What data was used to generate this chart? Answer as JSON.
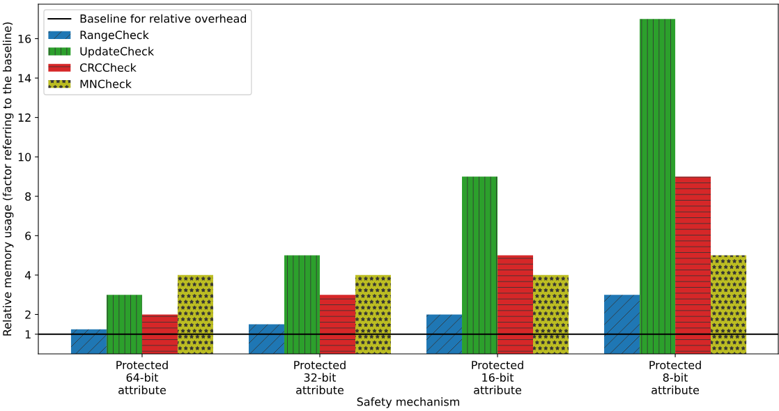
{
  "chart_data": {
    "type": "bar",
    "xlabel": "Safety mechanism",
    "ylabel": "Relative memory usage (factor referring to the baseline)",
    "categories": [
      "Protected\n64-bit\nattribute",
      "Protected\n32-bit\nattribute",
      "Protected\n16-bit\nattribute",
      "Protected\n8-bit\nattribute"
    ],
    "series": [
      {
        "name": "RangeCheck",
        "color": "#1f77b4",
        "values": [
          1.25,
          1.5,
          2,
          3
        ]
      },
      {
        "name": "UpdateCheck",
        "color": "#2ca02c",
        "values": [
          3,
          5,
          9,
          17
        ]
      },
      {
        "name": "CRCCheck",
        "color": "#d62728",
        "values": [
          2,
          3,
          5,
          9
        ]
      },
      {
        "name": "MNCheck",
        "color": "#bcbd22",
        "values": [
          4,
          4,
          4,
          5
        ]
      }
    ],
    "ylim": [
      0,
      17.75
    ],
    "yticks": [
      1,
      2,
      4,
      6,
      8,
      10,
      12,
      14,
      16
    ],
    "ref_lines": [
      {
        "axis": "y",
        "value": 1,
        "label": "Baseline for relative overhead",
        "color": "#000000"
      }
    ],
    "grid": false,
    "legend": "top left"
  }
}
